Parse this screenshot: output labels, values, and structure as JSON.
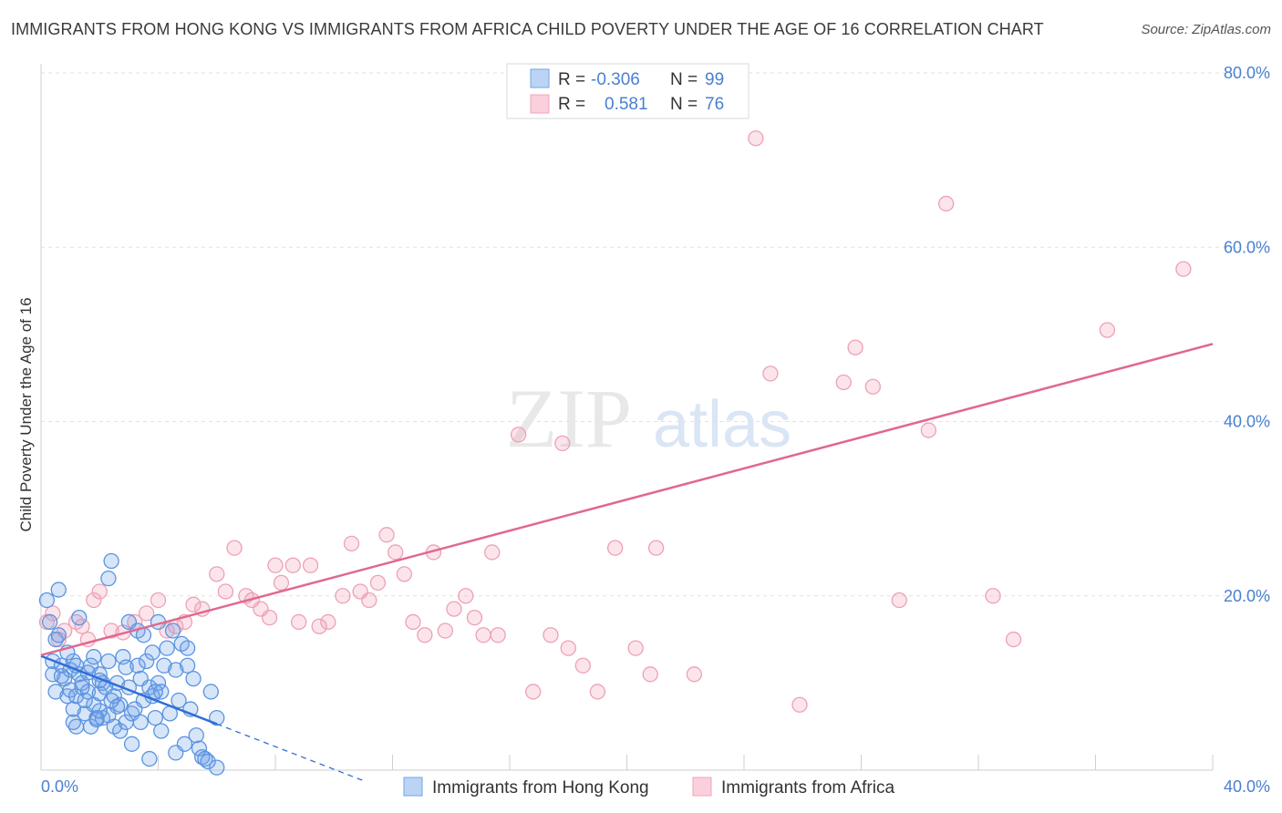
{
  "title": "IMMIGRANTS FROM HONG KONG VS IMMIGRANTS FROM AFRICA CHILD POVERTY UNDER THE AGE OF 16 CORRELATION CHART",
  "source": "Source: ZipAtlas.com",
  "watermark": {
    "zip": "ZIP",
    "atlas": "atlas"
  },
  "colors": {
    "blue": "#6fa3e8",
    "blue_line": "#2f6fd6",
    "pink": "#f0a3b8",
    "pink_line": "#e0688f",
    "tick": "#4a7fd0"
  },
  "legend": {
    "rows": [
      {
        "r_label": "R =",
        "r_value": "-0.306",
        "n_label": "N =",
        "n_value": "99"
      },
      {
        "r_label": "R =",
        "r_value": "0.581",
        "n_label": "N =",
        "n_value": "76"
      }
    ]
  },
  "bottom_legend": [
    "Immigrants from Hong Kong",
    "Immigrants from Africa"
  ],
  "chart_data": {
    "type": "scatter",
    "xlabel": "",
    "ylabel": "Child Poverty Under the Age of 16",
    "xlim": [
      0,
      40
    ],
    "ylim": [
      0,
      80
    ],
    "x_tick_labels": [
      "0.0%",
      "40.0%"
    ],
    "y_ticks": [
      20,
      40,
      60,
      80
    ],
    "y_tick_labels": [
      "20.0%",
      "40.0%",
      "60.0%",
      "80.0%"
    ],
    "grid": true,
    "legend_position": "top-center",
    "series": [
      {
        "name": "Immigrants from Hong Kong",
        "color": "#6fa3e8",
        "trend": {
          "x": [
            0.0,
            6.0
          ],
          "y": [
            13.1,
            5.3
          ],
          "dashed_to": [
            11.0,
            -1.2
          ]
        },
        "points": [
          [
            0.2,
            19.5
          ],
          [
            0.3,
            17.0
          ],
          [
            0.4,
            12.5
          ],
          [
            0.4,
            11.0
          ],
          [
            0.5,
            9.0
          ],
          [
            0.5,
            15.0
          ],
          [
            0.6,
            20.7
          ],
          [
            0.7,
            12.0
          ],
          [
            0.8,
            10.5
          ],
          [
            0.9,
            8.5
          ],
          [
            1.0,
            11.5
          ],
          [
            1.0,
            9.2
          ],
          [
            1.1,
            12.5
          ],
          [
            1.1,
            7.0
          ],
          [
            1.2,
            5.0
          ],
          [
            1.2,
            8.5
          ],
          [
            1.3,
            17.5
          ],
          [
            1.3,
            11.0
          ],
          [
            1.4,
            10.0
          ],
          [
            1.5,
            6.5
          ],
          [
            1.6,
            9.0
          ],
          [
            1.7,
            5.0
          ],
          [
            1.7,
            12.0
          ],
          [
            1.8,
            7.5
          ],
          [
            1.9,
            6.0
          ],
          [
            2.0,
            8.8
          ],
          [
            2.0,
            11.0
          ],
          [
            2.1,
            10.0
          ],
          [
            2.1,
            6.0
          ],
          [
            2.2,
            9.5
          ],
          [
            2.3,
            12.5
          ],
          [
            2.3,
            22.0
          ],
          [
            2.4,
            24.0
          ],
          [
            2.5,
            8.5
          ],
          [
            2.5,
            5.0
          ],
          [
            2.6,
            10.0
          ],
          [
            2.7,
            4.5
          ],
          [
            2.7,
            7.5
          ],
          [
            2.8,
            13.0
          ],
          [
            2.9,
            5.5
          ],
          [
            3.0,
            17.0
          ],
          [
            3.0,
            9.5
          ],
          [
            3.1,
            6.5
          ],
          [
            3.2,
            7.0
          ],
          [
            3.3,
            16.0
          ],
          [
            3.3,
            12.0
          ],
          [
            3.4,
            10.5
          ],
          [
            3.5,
            8.0
          ],
          [
            3.5,
            15.5
          ],
          [
            3.6,
            12.5
          ],
          [
            3.7,
            9.5
          ],
          [
            3.8,
            13.5
          ],
          [
            3.8,
            8.5
          ],
          [
            3.9,
            6.0
          ],
          [
            4.0,
            10.0
          ],
          [
            4.0,
            17.0
          ],
          [
            4.1,
            9.0
          ],
          [
            4.2,
            12.0
          ],
          [
            4.3,
            14.0
          ],
          [
            4.4,
            6.5
          ],
          [
            4.5,
            16.0
          ],
          [
            4.6,
            11.5
          ],
          [
            4.7,
            8.0
          ],
          [
            4.8,
            14.5
          ],
          [
            5.0,
            12.0
          ],
          [
            5.0,
            14.0
          ],
          [
            5.1,
            7.0
          ],
          [
            5.2,
            10.5
          ],
          [
            5.3,
            4.0
          ],
          [
            5.4,
            2.5
          ],
          [
            5.5,
            1.5
          ],
          [
            5.6,
            1.3
          ],
          [
            5.8,
            9.0
          ],
          [
            6.0,
            6.0
          ],
          [
            6.0,
            0.3
          ],
          [
            2.0,
            10.3
          ],
          [
            1.5,
            8.0
          ],
          [
            0.9,
            13.5
          ],
          [
            1.2,
            12.0
          ],
          [
            1.6,
            11.2
          ],
          [
            2.6,
            7.3
          ],
          [
            3.1,
            3.0
          ],
          [
            3.7,
            1.3
          ],
          [
            4.1,
            4.5
          ],
          [
            2.3,
            6.3
          ],
          [
            1.9,
            5.8
          ],
          [
            0.7,
            10.8
          ],
          [
            1.4,
            9.5
          ],
          [
            3.4,
            5.5
          ],
          [
            4.6,
            2.0
          ],
          [
            2.9,
            11.8
          ],
          [
            2.0,
            6.8
          ],
          [
            1.1,
            5.5
          ],
          [
            3.9,
            9.0
          ],
          [
            4.9,
            3.0
          ],
          [
            5.7,
            1.0
          ],
          [
            1.8,
            13.0
          ],
          [
            2.4,
            8.0
          ],
          [
            0.6,
            15.5
          ]
        ]
      },
      {
        "name": "Immigrants from Africa",
        "color": "#f0a3b8",
        "trend": {
          "x": [
            0.0,
            40.0
          ],
          "y": [
            13.2,
            48.9
          ]
        },
        "points": [
          [
            0.2,
            17.0
          ],
          [
            0.4,
            18.0
          ],
          [
            0.6,
            15.0
          ],
          [
            0.8,
            16.0
          ],
          [
            1.2,
            17.0
          ],
          [
            1.4,
            16.5
          ],
          [
            1.6,
            15.0
          ],
          [
            1.8,
            19.5
          ],
          [
            2.0,
            20.5
          ],
          [
            2.4,
            16.0
          ],
          [
            2.8,
            15.8
          ],
          [
            3.2,
            17.0
          ],
          [
            3.6,
            18.0
          ],
          [
            4.0,
            19.5
          ],
          [
            4.3,
            16.0
          ],
          [
            4.6,
            16.5
          ],
          [
            4.9,
            17.0
          ],
          [
            5.2,
            19.0
          ],
          [
            5.5,
            18.5
          ],
          [
            6.0,
            22.5
          ],
          [
            6.3,
            20.5
          ],
          [
            6.6,
            25.5
          ],
          [
            7.0,
            20.0
          ],
          [
            7.2,
            19.5
          ],
          [
            7.5,
            18.5
          ],
          [
            7.8,
            17.5
          ],
          [
            8.0,
            23.5
          ],
          [
            8.2,
            21.5
          ],
          [
            8.6,
            23.5
          ],
          [
            8.8,
            17.0
          ],
          [
            9.2,
            23.5
          ],
          [
            9.5,
            16.5
          ],
          [
            9.8,
            17.0
          ],
          [
            10.3,
            20.0
          ],
          [
            10.6,
            26.0
          ],
          [
            10.9,
            20.5
          ],
          [
            11.2,
            19.5
          ],
          [
            11.5,
            21.5
          ],
          [
            11.8,
            27.0
          ],
          [
            12.1,
            25.0
          ],
          [
            12.4,
            22.5
          ],
          [
            12.7,
            17.0
          ],
          [
            13.1,
            15.5
          ],
          [
            13.4,
            25.0
          ],
          [
            13.8,
            16.0
          ],
          [
            14.1,
            18.5
          ],
          [
            14.5,
            20.0
          ],
          [
            14.8,
            17.5
          ],
          [
            15.1,
            15.5
          ],
          [
            15.4,
            25.0
          ],
          [
            15.6,
            15.5
          ],
          [
            16.3,
            38.5
          ],
          [
            16.8,
            9.0
          ],
          [
            17.4,
            15.5
          ],
          [
            17.8,
            37.5
          ],
          [
            18.0,
            14.0
          ],
          [
            18.5,
            12.0
          ],
          [
            19.0,
            9.0
          ],
          [
            19.6,
            25.5
          ],
          [
            20.3,
            14.0
          ],
          [
            20.8,
            11.0
          ],
          [
            21.0,
            25.5
          ],
          [
            22.3,
            11.0
          ],
          [
            24.4,
            72.5
          ],
          [
            24.9,
            45.5
          ],
          [
            25.9,
            7.5
          ],
          [
            27.4,
            44.5
          ],
          [
            27.8,
            48.5
          ],
          [
            28.4,
            44.0
          ],
          [
            29.3,
            19.5
          ],
          [
            30.3,
            39.0
          ],
          [
            30.9,
            65.0
          ],
          [
            32.5,
            20.0
          ],
          [
            33.2,
            15.0
          ],
          [
            36.4,
            50.5
          ],
          [
            39.0,
            57.5
          ]
        ]
      }
    ]
  }
}
